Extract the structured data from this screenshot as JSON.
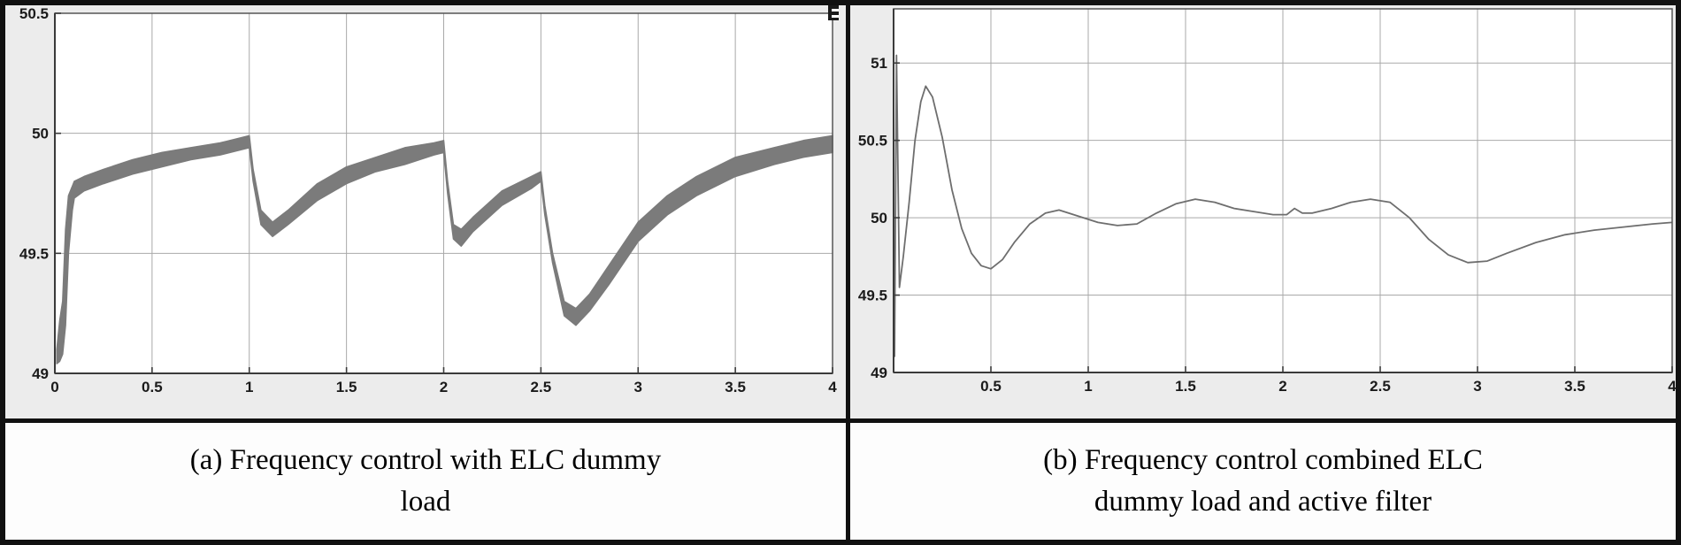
{
  "figure": {
    "panels": [
      {
        "id": "a",
        "caption_line1": "(a) Frequency control with ELC dummy",
        "caption_line2": "load"
      },
      {
        "id": "b",
        "caption_line1": "(b) Frequency control combined ELC",
        "caption_line2": "dummy load and active filter"
      }
    ],
    "colors": {
      "band": "#7b7b7b",
      "line": "#6e6e6e",
      "grid": "#a9a9a9",
      "axis": "#3a3a3a",
      "panel_bg": "#ececec",
      "plot_bg": "#ffffff",
      "frame": "#111111"
    }
  },
  "chart_data": [
    {
      "type": "area",
      "title": "",
      "xlabel": "",
      "ylabel": "",
      "grid": true,
      "legend": "none",
      "xlim": [
        0,
        4
      ],
      "ylim": [
        49,
        50.5
      ],
      "x_ticks": [
        0,
        0.5,
        1,
        1.5,
        2,
        2.5,
        3,
        3.5,
        4
      ],
      "x_tick_labels": [
        "0",
        "0.5",
        "1",
        "1.5",
        "2",
        "2.5",
        "3",
        "3.5",
        "4"
      ],
      "y_ticks": [
        49,
        49.5,
        50,
        50.5
      ],
      "y_tick_labels": [
        "49",
        "49.5",
        "50",
        "50.5"
      ],
      "series": [
        {
          "name": "frequency-band-elc-dummy-load",
          "band": {
            "x": [
              0.01,
              0.025,
              0.04,
              0.055,
              0.07,
              0.09,
              0.1,
              0.15,
              0.25,
              0.4,
              0.55,
              0.7,
              0.85,
              0.95,
              1.0,
              1.02,
              1.06,
              1.12,
              1.2,
              1.35,
              1.5,
              1.65,
              1.8,
              1.95,
              2.0,
              2.02,
              2.05,
              2.09,
              2.15,
              2.3,
              2.45,
              2.5,
              2.52,
              2.56,
              2.62,
              2.68,
              2.75,
              2.85,
              3.0,
              3.15,
              3.3,
              3.5,
              3.7,
              3.85,
              4.0
            ],
            "upper": [
              49.1,
              49.22,
              49.3,
              49.6,
              49.74,
              49.78,
              49.8,
              49.82,
              49.85,
              49.89,
              49.92,
              49.94,
              49.96,
              49.98,
              49.99,
              49.85,
              49.68,
              49.63,
              49.68,
              49.79,
              49.86,
              49.9,
              49.94,
              49.96,
              49.97,
              49.8,
              49.62,
              49.6,
              49.65,
              49.76,
              49.82,
              49.84,
              49.7,
              49.5,
              49.3,
              49.27,
              49.33,
              49.45,
              49.63,
              49.74,
              49.82,
              49.9,
              49.94,
              49.97,
              49.99
            ],
            "lower": [
              49.04,
              49.05,
              49.08,
              49.2,
              49.5,
              49.68,
              49.73,
              49.76,
              49.79,
              49.83,
              49.86,
              49.89,
              49.91,
              49.93,
              49.94,
              49.8,
              49.62,
              49.57,
              49.62,
              49.72,
              49.79,
              49.84,
              49.87,
              49.91,
              49.92,
              49.75,
              49.56,
              49.53,
              49.59,
              49.7,
              49.77,
              49.8,
              49.66,
              49.46,
              49.24,
              49.2,
              49.26,
              49.37,
              49.55,
              49.66,
              49.74,
              49.82,
              49.87,
              49.9,
              49.92
            ]
          }
        }
      ]
    },
    {
      "type": "line",
      "title": "",
      "xlabel": "",
      "ylabel": "",
      "grid": true,
      "legend": "none",
      "xlim": [
        0,
        4
      ],
      "ylim": [
        49,
        51.35
      ],
      "x_ticks": [
        0.5,
        1,
        1.5,
        2,
        2.5,
        3,
        3.5,
        4
      ],
      "x_tick_labels": [
        "0.5",
        "1",
        "1.5",
        "2",
        "2.5",
        "3",
        "3.5",
        "4"
      ],
      "y_ticks": [
        49,
        49.5,
        50,
        50.5,
        51
      ],
      "y_tick_labels": [
        "49",
        "49.5",
        "50",
        "50.5",
        "51"
      ],
      "series": [
        {
          "name": "frequency-elc-plus-active-filter",
          "x": [
            0.005,
            0.015,
            0.03,
            0.05,
            0.08,
            0.11,
            0.14,
            0.165,
            0.2,
            0.25,
            0.3,
            0.35,
            0.4,
            0.45,
            0.5,
            0.56,
            0.62,
            0.7,
            0.78,
            0.85,
            0.95,
            1.05,
            1.15,
            1.25,
            1.35,
            1.45,
            1.55,
            1.65,
            1.75,
            1.85,
            1.95,
            2.02,
            2.06,
            2.1,
            2.15,
            2.25,
            2.35,
            2.45,
            2.55,
            2.65,
            2.75,
            2.85,
            2.95,
            3.05,
            3.15,
            3.3,
            3.45,
            3.6,
            3.75,
            3.9,
            4.0
          ],
          "y": [
            49.1,
            51.05,
            49.55,
            49.75,
            50.1,
            50.5,
            50.75,
            50.85,
            50.78,
            50.52,
            50.18,
            49.93,
            49.77,
            49.69,
            49.67,
            49.73,
            49.84,
            49.96,
            50.03,
            50.05,
            50.01,
            49.97,
            49.95,
            49.96,
            50.03,
            50.09,
            50.12,
            50.1,
            50.06,
            50.04,
            50.02,
            50.02,
            50.06,
            50.03,
            50.03,
            50.06,
            50.1,
            50.12,
            50.1,
            50.0,
            49.86,
            49.76,
            49.71,
            49.72,
            49.77,
            49.84,
            49.89,
            49.92,
            49.94,
            49.96,
            49.97
          ]
        }
      ]
    }
  ]
}
